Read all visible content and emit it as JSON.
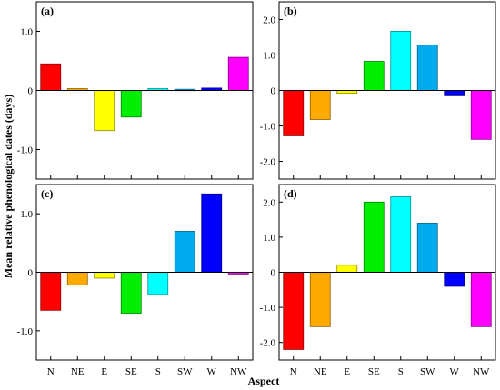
{
  "figure": {
    "ylabel": "Mean relative phenological dates (days)",
    "xlabel": "Aspect"
  },
  "chart_data": [
    {
      "type": "bar",
      "panel": "(a)",
      "categories": [
        "N",
        "NE",
        "E",
        "SE",
        "S",
        "SW",
        "W",
        "NW"
      ],
      "values": [
        0.45,
        0.03,
        -0.68,
        -0.45,
        0.03,
        0.02,
        0.04,
        0.56
      ],
      "colors": [
        "#ff0000",
        "#ffaa00",
        "#ffff00",
        "#00ee00",
        "#00ffff",
        "#00aaee",
        "#0000ff",
        "#ff00ff"
      ],
      "ylim": [
        -1.5,
        1.5
      ],
      "yticks": [
        -1.0,
        0,
        1.0
      ],
      "ytick_labels": [
        "-1.0",
        "0",
        "1.0"
      ],
      "show_xticks": false
    },
    {
      "type": "bar",
      "panel": "(b)",
      "categories": [
        "N",
        "NE",
        "E",
        "SE",
        "S",
        "SW",
        "W",
        "NW"
      ],
      "values": [
        -1.28,
        -0.82,
        -0.08,
        0.82,
        1.67,
        1.28,
        -0.15,
        -1.38
      ],
      "colors": [
        "#ff0000",
        "#ffaa00",
        "#ffff00",
        "#00ee00",
        "#00ffff",
        "#00aaee",
        "#0000ff",
        "#ff00ff"
      ],
      "ylim": [
        -2.5,
        2.5
      ],
      "yticks": [
        -2.0,
        -1.0,
        0,
        1.0,
        2.0
      ],
      "ytick_labels": [
        "-2.0",
        "-1.0",
        "0",
        "1.0",
        "2.0"
      ],
      "show_xticks": false
    },
    {
      "type": "bar",
      "panel": "(c)",
      "categories": [
        "N",
        "NE",
        "E",
        "SE",
        "S",
        "SW",
        "W",
        "NW"
      ],
      "values": [
        -0.65,
        -0.22,
        -0.1,
        -0.7,
        -0.38,
        0.7,
        1.34,
        -0.03
      ],
      "colors": [
        "#ff0000",
        "#ffaa00",
        "#ffff00",
        "#00ee00",
        "#00ffff",
        "#00aaee",
        "#0000ff",
        "#ff00ff"
      ],
      "ylim": [
        -1.5,
        1.5
      ],
      "yticks": [
        -1.0,
        0,
        1.0
      ],
      "ytick_labels": [
        "-1.0",
        "0",
        "1.0"
      ],
      "show_xticks": true
    },
    {
      "type": "bar",
      "panel": "(d)",
      "categories": [
        "N",
        "NE",
        "E",
        "SE",
        "S",
        "SW",
        "W",
        "NW"
      ],
      "values": [
        -2.2,
        -1.55,
        0.2,
        2.0,
        2.15,
        1.4,
        -0.4,
        -1.55
      ],
      "colors": [
        "#ff0000",
        "#ffaa00",
        "#ffff00",
        "#00ee00",
        "#00ffff",
        "#00aaee",
        "#0000ff",
        "#ff00ff"
      ],
      "ylim": [
        -2.5,
        2.5
      ],
      "yticks": [
        -2.0,
        -1.0,
        0,
        1.0,
        2.0
      ],
      "ytick_labels": [
        "-2.0",
        "-1.0",
        "0",
        "1.0",
        "2.0"
      ],
      "show_xticks": true
    }
  ]
}
